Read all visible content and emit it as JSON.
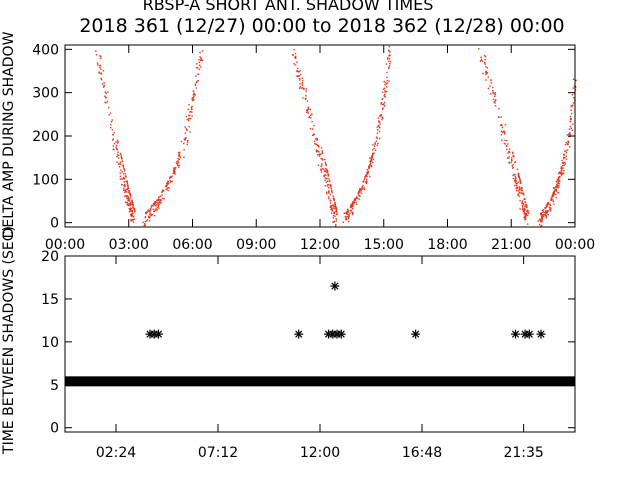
{
  "title_line1": "RBSP-A SHORT ANT. SHADOW TIMES",
  "title_line2": "2018 361 (12/27) 00:00 to 2018 362 (12/28) 00:00",
  "colors": {
    "background": "#ffffff",
    "axes": "#000000",
    "top_points": "#e8341c",
    "bottom_points": "#000000"
  },
  "chart_data": [
    {
      "type": "scatter",
      "ylabel": "DELTA AMP DURING SHADOW",
      "ylabel_partial": true,
      "ylim": [
        -10,
        410
      ],
      "y_ticks": [
        0,
        100,
        200,
        300,
        400
      ],
      "y_tick_labels": [
        "0",
        "100",
        "200",
        "300",
        "400"
      ],
      "xlim_hours": [
        0,
        24
      ],
      "x_ticks_hours": [
        0,
        3,
        6,
        9,
        12,
        15,
        18,
        21,
        24
      ],
      "x_tick_labels": [
        "00:00",
        "03:00",
        "06:00",
        "09:00",
        "12:00",
        "15:00",
        "18:00",
        "21:00",
        "00:00"
      ],
      "marker": "dot",
      "color": "#e8341c",
      "dip_centers_hours": [
        3.4,
        12.85,
        21.9
      ],
      "note_branches": [
        {
          "x_hours": [
            1.5,
            1.9,
            2.3,
            2.7,
            3.0,
            3.2
          ],
          "y": [
            400,
            290,
            190,
            100,
            40,
            5
          ]
        },
        {
          "x_hours": [
            3.7,
            4.3,
            5.0,
            5.6,
            6.0,
            6.4
          ],
          "y": [
            5,
            40,
            100,
            190,
            290,
            390
          ]
        },
        {
          "x_hours": [
            10.7,
            11.2,
            11.7,
            12.2,
            12.5,
            12.7
          ],
          "y": [
            400,
            300,
            200,
            110,
            45,
            5
          ]
        },
        {
          "x_hours": [
            13.1,
            13.6,
            14.2,
            14.7,
            15.0,
            15.3
          ],
          "y": [
            5,
            40,
            110,
            200,
            300,
            400
          ]
        },
        {
          "x_hours": [
            19.5,
            20.1,
            20.7,
            21.2,
            21.5,
            21.7
          ],
          "y": [
            400,
            300,
            190,
            100,
            40,
            5
          ]
        },
        {
          "x_hours": [
            22.3,
            22.8,
            23.3,
            23.7,
            24.0
          ],
          "y": [
            5,
            40,
            110,
            200,
            330
          ]
        }
      ]
    },
    {
      "type": "scatter",
      "ylabel": "TIME BETWEEN SHADOWS (SEC)",
      "ylim": [
        -0.5,
        20
      ],
      "y_ticks": [
        0,
        5,
        10,
        15,
        20
      ],
      "y_tick_labels": [
        "0",
        "5",
        "10",
        "15",
        "20"
      ],
      "xlim_hours": [
        0,
        24
      ],
      "x_ticks_hours": [
        2.4,
        7.2,
        12.0,
        16.8,
        21.583
      ],
      "x_tick_labels": [
        "02:24",
        "07:12",
        "12:00",
        "16:48",
        "21:35"
      ],
      "marker": "asterisk",
      "color": "#000000",
      "baseline": {
        "y": 5.4,
        "x_hours_range": [
          0,
          24
        ]
      },
      "points": [
        {
          "x": 4.0,
          "y": 10.9
        },
        {
          "x": 4.2,
          "y": 10.9
        },
        {
          "x": 4.4,
          "y": 10.9
        },
        {
          "x": 11.0,
          "y": 10.9
        },
        {
          "x": 12.4,
          "y": 10.9
        },
        {
          "x": 12.6,
          "y": 10.9
        },
        {
          "x": 12.8,
          "y": 10.9
        },
        {
          "x": 13.0,
          "y": 10.9
        },
        {
          "x": 12.7,
          "y": 16.5
        },
        {
          "x": 16.5,
          "y": 10.9
        },
        {
          "x": 21.2,
          "y": 10.9
        },
        {
          "x": 21.65,
          "y": 10.9
        },
        {
          "x": 21.85,
          "y": 10.9
        },
        {
          "x": 22.4,
          "y": 10.9
        }
      ]
    }
  ]
}
